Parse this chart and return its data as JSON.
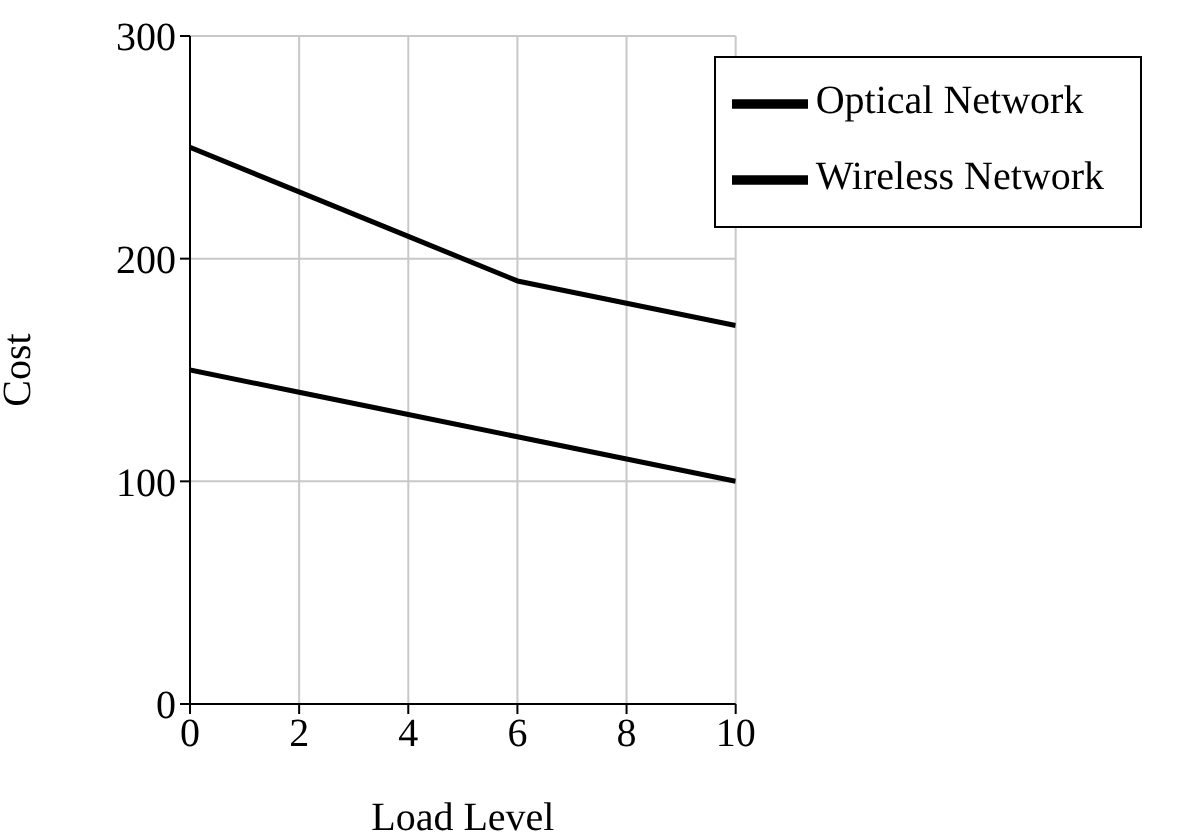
{
  "chart_data": {
    "type": "line",
    "xlabel": "Load Level",
    "ylabel": "Cost",
    "x": [
      0,
      2,
      4,
      6,
      8,
      10
    ],
    "series": [
      {
        "name": "Optical Network",
        "color": "#000000",
        "values": [
          250,
          230,
          210,
          190,
          180,
          170
        ]
      },
      {
        "name": "Wireless Network",
        "color": "#000000",
        "values": [
          150,
          140,
          130,
          120,
          110,
          100
        ]
      }
    ],
    "xlim": [
      0,
      10
    ],
    "xticks": [
      0,
      2,
      4,
      6,
      8,
      10
    ],
    "ylim": [
      0,
      300
    ],
    "yticks": [
      0,
      100,
      200,
      300
    ],
    "grid": true,
    "legend": "top right"
  }
}
